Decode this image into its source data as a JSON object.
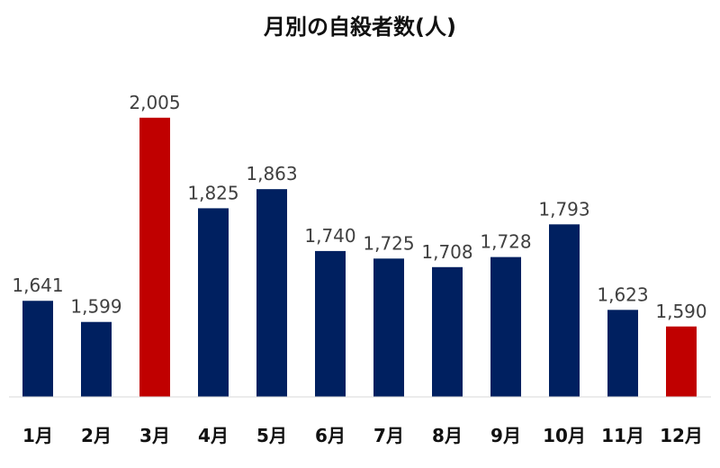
{
  "chart_data": {
    "type": "bar",
    "title": "月別の自殺者数(人)",
    "xlabel": "",
    "ylabel": "",
    "categories": [
      "1月",
      "2月",
      "3月",
      "4月",
      "5月",
      "6月",
      "7月",
      "8月",
      "9月",
      "10月",
      "11月",
      "12月"
    ],
    "values": [
      1641,
      1599,
      2005,
      1825,
      1863,
      1740,
      1725,
      1708,
      1728,
      1793,
      1623,
      1590
    ],
    "data_labels": [
      "1,641",
      "1,599",
      "2,005",
      "1,825",
      "1,863",
      "1,740",
      "1,725",
      "1,708",
      "1,728",
      "1,793",
      "1,623",
      "1,590"
    ],
    "ylim": [
      1450,
      2010
    ],
    "grid": false,
    "legend": "none",
    "colors": {
      "default": "#002060",
      "highlight": "#C00000",
      "baseline": "#d9d9d9"
    },
    "highlighted_categories": [
      "3月",
      "12月"
    ]
  }
}
